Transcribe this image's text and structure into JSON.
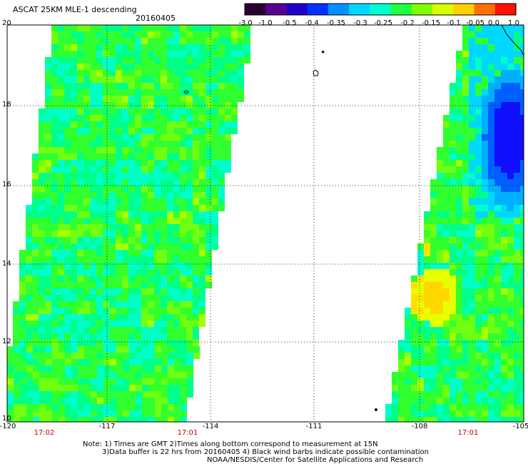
{
  "header": {
    "title": "ASCAT 25KM MLE-1 descending",
    "date": "20160405"
  },
  "colorbar": {
    "labels": [
      "-3.0",
      "-1.0",
      "-0.5",
      "-0.4",
      "-0.35",
      "-0.3",
      "-0.25",
      "-0.2",
      "-0.15",
      "-0.1",
      "-0.05",
      "0.0",
      "1.0"
    ],
    "colors": [
      "#2a0030",
      "#5a0090",
      "#2000c8",
      "#0030ff",
      "#0090ff",
      "#00d8ff",
      "#00ffd0",
      "#20ff40",
      "#80ff00",
      "#d8ff00",
      "#ffd000",
      "#ff7000",
      "#ff1000"
    ]
  },
  "axes": {
    "lon_labels": [
      "-120",
      "-117",
      "-114",
      "-111",
      "-108",
      "-105"
    ],
    "lat_labels": [
      "20",
      "18",
      "16",
      "14",
      "12",
      "10"
    ]
  },
  "times": [
    "17:02",
    "17:01",
    "17:01"
  ],
  "notes": {
    "line1": "Note: 1) Times are GMT 2)Times along bottom correspond to measurement at 15N",
    "line2": "3)Data buffer is 22 hrs from 20160405 4) Black wind barbs indicate possible contamination",
    "line3": "NOAA/NESDIS/Center for Satellite Applications and Research"
  }
}
